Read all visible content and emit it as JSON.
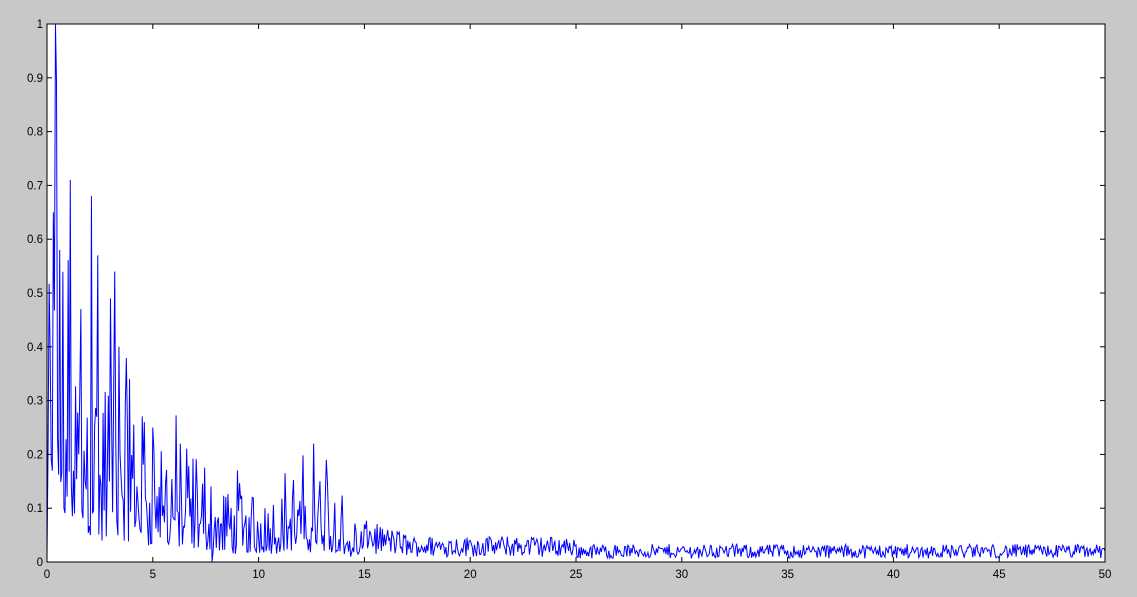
{
  "chart_data": {
    "type": "line",
    "title": "",
    "xlabel": "",
    "ylabel": "",
    "xlim": [
      0,
      50
    ],
    "ylim": [
      0,
      1
    ],
    "x_ticks": [
      "0",
      "5",
      "10",
      "15",
      "20",
      "25",
      "30",
      "35",
      "40",
      "45",
      "50"
    ],
    "y_ticks": [
      "0",
      "0.1",
      "0.2",
      "0.3",
      "0.4",
      "0.5",
      "0.6",
      "0.7",
      "0.8",
      "0.9",
      "1"
    ],
    "grid": false,
    "legend": "none",
    "series": [
      {
        "color": "#0000ff",
        "sample_step": 0.05,
        "key_points": [
          {
            "x": 0.0,
            "y": 0.01
          },
          {
            "x": 0.2,
            "y": 0.19
          },
          {
            "x": 0.3,
            "y": 0.65
          },
          {
            "x": 0.4,
            "y": 1.0
          },
          {
            "x": 0.45,
            "y": 0.89
          },
          {
            "x": 0.6,
            "y": 0.58
          },
          {
            "x": 0.8,
            "y": 0.1
          },
          {
            "x": 1.1,
            "y": 0.71
          },
          {
            "x": 1.3,
            "y": 0.09
          },
          {
            "x": 1.6,
            "y": 0.47
          },
          {
            "x": 2.1,
            "y": 0.68
          },
          {
            "x": 2.4,
            "y": 0.57
          },
          {
            "x": 2.6,
            "y": 0.04
          },
          {
            "x": 3.0,
            "y": 0.49
          },
          {
            "x": 3.2,
            "y": 0.54
          },
          {
            "x": 3.4,
            "y": 0.4
          },
          {
            "x": 3.9,
            "y": 0.34
          },
          {
            "x": 4.6,
            "y": 0.26
          },
          {
            "x": 5.0,
            "y": 0.25
          },
          {
            "x": 6.3,
            "y": 0.22
          },
          {
            "x": 7.8,
            "y": 0.0
          },
          {
            "x": 9.0,
            "y": 0.17
          },
          {
            "x": 10.3,
            "y": 0.1
          },
          {
            "x": 12.6,
            "y": 0.22
          },
          {
            "x": 13.2,
            "y": 0.19
          },
          {
            "x": 15.0,
            "y": 0.07
          },
          {
            "x": 20.0,
            "y": 0.04
          },
          {
            "x": 30.0,
            "y": 0.025
          },
          {
            "x": 40.0,
            "y": 0.02
          },
          {
            "x": 50.0,
            "y": 0.02
          }
        ]
      }
    ]
  }
}
